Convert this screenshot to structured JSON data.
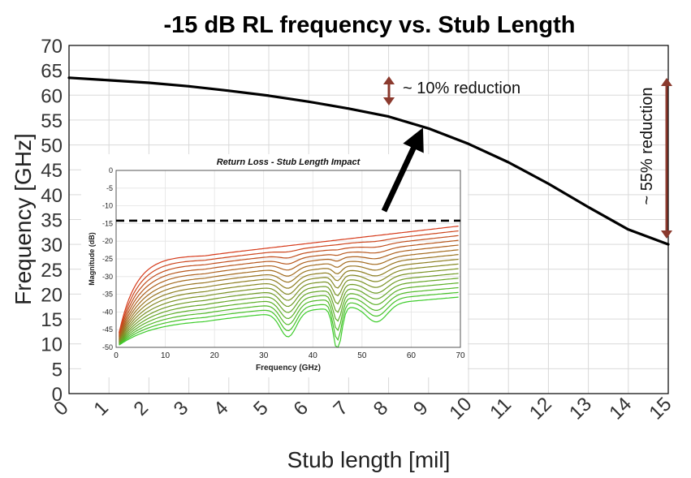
{
  "chart_data": [
    {
      "type": "line",
      "title": "-15 dB RL frequency vs. Stub Length",
      "xlabel": "Stub length [mil]",
      "ylabel": "Frequency [GHz]",
      "xlim": [
        0,
        15
      ],
      "ylim": [
        0,
        70
      ],
      "xticks": [
        0,
        1,
        2,
        3,
        4,
        5,
        6,
        7,
        8,
        9,
        10,
        11,
        12,
        13,
        14,
        15
      ],
      "yticks": [
        0,
        5,
        10,
        15,
        20,
        25,
        30,
        35,
        40,
        45,
        50,
        55,
        60,
        65,
        70
      ],
      "grid": true,
      "series": [
        {
          "name": "-15 dB RL frequency",
          "color": "#000000",
          "x": [
            0,
            1,
            2,
            3,
            4,
            5,
            6,
            7,
            8,
            9,
            10,
            11,
            12,
            13,
            14,
            15
          ],
          "y": [
            63.5,
            63.0,
            62.5,
            61.8,
            60.9,
            59.9,
            58.7,
            57.3,
            55.7,
            53.3,
            50.2,
            46.5,
            42.2,
            37.5,
            33.0,
            30.0
          ]
        }
      ],
      "annotations": [
        {
          "text": "~ 10% reduction",
          "color": "#8b3a2e"
        },
        {
          "text": "~ 55% reduction",
          "color": "#8b3a2e"
        }
      ]
    },
    {
      "type": "line",
      "title": "Return Loss - Stub Length Impact",
      "xlabel": "Frequency (GHz)",
      "ylabel": "Magnitude (dB)",
      "xlim": [
        0,
        70
      ],
      "ylim": [
        -50,
        0
      ],
      "xticks": [
        0,
        10,
        20,
        30,
        40,
        50,
        60,
        70
      ],
      "yticks": [
        0,
        -5,
        -10,
        -15,
        -20,
        -25,
        -30,
        -35,
        -40,
        -45,
        -50
      ],
      "grid": true,
      "reference_line_db": -14.2,
      "series_count": 16,
      "color_start": "#d63a1a",
      "color_end": "#3ccc2a"
    }
  ]
}
